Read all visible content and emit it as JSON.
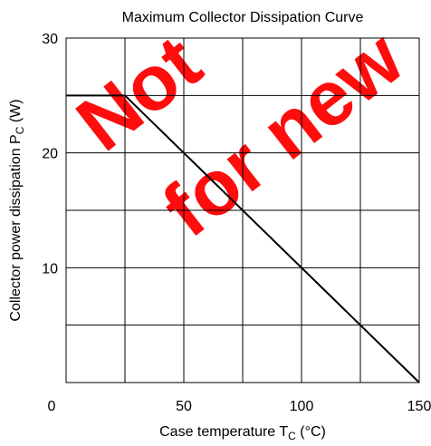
{
  "chart_data": {
    "type": "line",
    "title": "Maximum Collector Dissipation Curve",
    "xlabel": {
      "main": "Case temperature  T",
      "sub": "C",
      "unit": "  (°C)"
    },
    "ylabel": {
      "main": "Collector power dissipation  P",
      "sub": "C",
      "unit": "  (W)"
    },
    "xlim": [
      0,
      150
    ],
    "ylim": [
      0,
      30
    ],
    "x_gridlines": [
      25,
      50,
      75,
      100,
      125
    ],
    "y_gridlines": [
      5,
      10,
      15,
      20,
      25
    ],
    "x_tick_labels": [
      {
        "value": 0,
        "label": "0"
      },
      {
        "value": 50,
        "label": "50"
      },
      {
        "value": 100,
        "label": "100"
      },
      {
        "value": 150,
        "label": "150"
      }
    ],
    "y_tick_labels": [
      {
        "value": 10,
        "label": "10"
      },
      {
        "value": 20,
        "label": "20"
      },
      {
        "value": 30,
        "label": "30"
      }
    ],
    "grid": true,
    "series": [
      {
        "x": [
          0,
          25,
          150
        ],
        "y": [
          25,
          25,
          0
        ]
      }
    ],
    "watermark": {
      "lines": [
        "Not",
        "for new"
      ],
      "color": "#ff0000"
    }
  }
}
